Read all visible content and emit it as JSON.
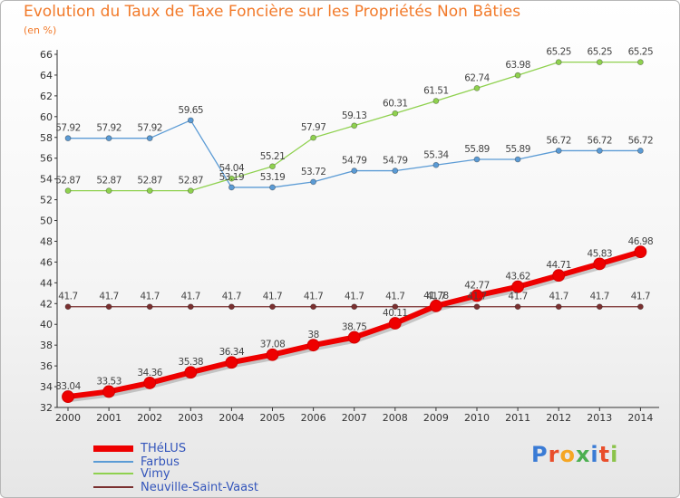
{
  "header": {
    "title": "Evolution du Taux de Taxe Foncière sur les Propriétés Non Bâties",
    "subtitle": "(en %)"
  },
  "brand": {
    "text": "Proxiti",
    "colors": [
      "#3a7bd5",
      "#e94e2b",
      "#f5a623",
      "#4caf50",
      "#3a7bd5",
      "#e94e2b",
      "#8bc34a"
    ]
  },
  "chart_data": {
    "type": "line",
    "categories": [
      "2000",
      "2001",
      "2002",
      "2003",
      "2004",
      "2005",
      "2006",
      "2007",
      "2008",
      "2009",
      "2010",
      "2011",
      "2012",
      "2013",
      "2014"
    ],
    "ylim": [
      32,
      66
    ],
    "yticks": [
      32,
      34,
      36,
      38,
      40,
      42,
      44,
      46,
      48,
      50,
      52,
      54,
      56,
      58,
      60,
      62,
      64,
      66
    ],
    "grid": false,
    "legend_placement": "bottom-left",
    "series": [
      {
        "name": "THéLUS",
        "color": "#ee0000",
        "values": [
          33.04,
          33.53,
          34.36,
          35.38,
          36.34,
          37.08,
          38,
          38.75,
          40.11,
          41.78,
          42.77,
          43.62,
          44.71,
          45.83,
          46.98
        ],
        "labels": [
          "33.04",
          "33.53",
          "34.36",
          "35.38",
          "36.34",
          "37.08",
          "38",
          "38.75",
          "40.11",
          "41.78",
          "42.77",
          "43.62",
          "44.71",
          "45.83",
          "46.98"
        ]
      },
      {
        "name": "Farbus",
        "color": "#5b9bd5",
        "values": [
          57.92,
          57.92,
          57.92,
          59.65,
          53.19,
          53.19,
          53.72,
          54.79,
          54.79,
          55.34,
          55.89,
          55.89,
          56.72,
          56.72,
          56.72
        ],
        "labels": [
          "57.92",
          "57.92",
          "57.92",
          "59.65",
          "53.19",
          "53.19",
          "53.72",
          "54.79",
          "54.79",
          "55.34",
          "55.89",
          "55.89",
          "56.72",
          "56.72",
          "56.72"
        ]
      },
      {
        "name": "Vimy",
        "color": "#8fd14f",
        "values": [
          52.87,
          52.87,
          52.87,
          52.87,
          54.04,
          55.21,
          57.97,
          59.13,
          60.31,
          61.51,
          62.74,
          63.98,
          65.25,
          65.25,
          65.25
        ],
        "labels": [
          "52.87",
          "52.87",
          "52.87",
          "52.87",
          "54.04",
          "55.21",
          "57.97",
          "59.13",
          "60.31",
          "61.51",
          "62.74",
          "63.98",
          "65.25",
          "65.25",
          "65.25"
        ]
      },
      {
        "name": "Neuville-Saint-Vaast",
        "color": "#7a3030",
        "values": [
          41.7,
          41.7,
          41.7,
          41.7,
          41.7,
          41.7,
          41.7,
          41.7,
          41.7,
          41.7,
          41.7,
          41.7,
          41.7,
          41.7,
          41.7
        ],
        "labels": [
          "41.7",
          "41.7",
          "41.7",
          "41.7",
          "41.7",
          "41.7",
          "41.7",
          "41.7",
          "41.7",
          "41.7",
          "41.7",
          "41.7",
          "41.7",
          "41.7",
          "41.7"
        ]
      }
    ]
  }
}
